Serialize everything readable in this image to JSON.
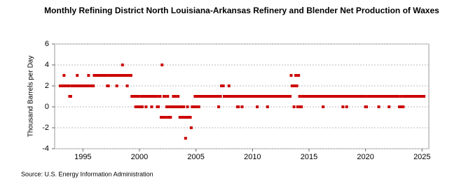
{
  "chart_data": {
    "type": "scatter",
    "title": "Monthly Refining District North Louisiana-Arkansas Refinery and Blender Net Production of Waxes",
    "y_label": "Thousand Barrels per Day",
    "source": "Source: U.S. Energy Information Administration",
    "color": "#cc0000",
    "xlim": [
      1992.5,
      2025.6
    ],
    "xticks": [
      1995,
      2000,
      2005,
      2010,
      2015,
      2020,
      2025
    ],
    "ylim": [
      -4,
      6
    ],
    "yticks": [
      -4,
      -2,
      0,
      2,
      4,
      6
    ],
    "grid": true,
    "x": [
      1993,
      1993.08,
      1993.17,
      1993.25,
      1993.33,
      1993.42,
      1993.5,
      1993.58,
      1993.67,
      1993.75,
      1993.83,
      1993.92,
      1994,
      1994.08,
      1994.17,
      1994.25,
      1994.33,
      1994.42,
      1994.5,
      1994.58,
      1994.67,
      1994.75,
      1994.83,
      1994.92,
      1995,
      1995.08,
      1995.17,
      1995.25,
      1995.33,
      1995.42,
      1995.5,
      1995.58,
      1995.67,
      1995.75,
      1995.83,
      1995.92,
      1996,
      1996.08,
      1996.17,
      1996.25,
      1996.33,
      1996.42,
      1996.5,
      1996.58,
      1996.67,
      1996.75,
      1996.83,
      1996.92,
      1997,
      1997.08,
      1997.17,
      1997.25,
      1997.33,
      1997.42,
      1997.5,
      1997.58,
      1997.67,
      1997.75,
      1997.83,
      1997.92,
      1998,
      1998.08,
      1998.17,
      1998.25,
      1998.33,
      1998.42,
      1998.5,
      1998.58,
      1998.67,
      1998.75,
      1998.83,
      1998.92,
      1999,
      1999.08,
      1999.17,
      1999.25,
      1999.33,
      1999.42,
      1999.5,
      1999.58,
      1999.67,
      1999.75,
      1999.83,
      1999.92,
      2000,
      2000.08,
      2000.17,
      2000.25,
      2000.33,
      2000.42,
      2000.5,
      2000.58,
      2000.67,
      2000.75,
      2000.83,
      2000.92,
      2001,
      2001.08,
      2001.17,
      2001.25,
      2001.33,
      2001.42,
      2001.5,
      2001.58,
      2001.67,
      2001.75,
      2001.83,
      2001.92,
      2002,
      2002.08,
      2002.17,
      2002.25,
      2002.33,
      2002.42,
      2002.5,
      2002.58,
      2002.67,
      2002.75,
      2002.83,
      2002.92,
      2003,
      2003.08,
      2003.17,
      2003.25,
      2003.33,
      2003.42,
      2003.5,
      2003.58,
      2003.67,
      2003.75,
      2003.83,
      2003.92,
      2004,
      2004.08,
      2004.17,
      2004.25,
      2004.33,
      2004.42,
      2004.5,
      2004.58,
      2004.67,
      2004.75,
      2004.83,
      2004.92,
      2005,
      2005.08,
      2005.17,
      2005.25,
      2005.33,
      2005.42,
      2005.5,
      2005.58,
      2005.67,
      2005.75,
      2005.83,
      2005.92,
      2006,
      2006.08,
      2006.17,
      2006.25,
      2006.33,
      2006.42,
      2006.5,
      2006.58,
      2006.67,
      2006.75,
      2006.83,
      2006.92,
      2007,
      2007.08,
      2007.17,
      2007.25,
      2007.33,
      2007.42,
      2007.5,
      2007.58,
      2007.67,
      2007.75,
      2007.83,
      2007.92,
      2008,
      2008.08,
      2008.17,
      2008.25,
      2008.33,
      2008.42,
      2008.5,
      2008.58,
      2008.67,
      2008.75,
      2008.83,
      2008.92,
      2009,
      2009.08,
      2009.17,
      2009.25,
      2009.33,
      2009.42,
      2009.5,
      2009.58,
      2009.67,
      2009.75,
      2009.83,
      2009.92,
      2010,
      2010.08,
      2010.17,
      2010.25,
      2010.33,
      2010.42,
      2010.5,
      2010.58,
      2010.67,
      2010.75,
      2010.83,
      2010.92,
      2011,
      2011.08,
      2011.17,
      2011.25,
      2011.33,
      2011.42,
      2011.5,
      2011.58,
      2011.67,
      2011.75,
      2011.83,
      2011.92,
      2012,
      2012.08,
      2012.17,
      2012.25,
      2012.33,
      2012.42,
      2012.5,
      2012.58,
      2012.67,
      2012.75,
      2012.83,
      2012.92,
      2013,
      2013.08,
      2013.17,
      2013.25,
      2013.33,
      2013.42,
      2013.5,
      2013.58,
      2013.67,
      2013.75,
      2013.83,
      2013.92,
      2014,
      2014.08,
      2014.17,
      2014.25,
      2014.33,
      2014.42,
      2014.5,
      2014.58,
      2014.67,
      2014.75,
      2014.83,
      2014.92,
      2015,
      2015.08,
      2015.17,
      2015.25,
      2015.33,
      2015.42,
      2015.5,
      2015.58,
      2015.67,
      2015.75,
      2015.83,
      2015.92,
      2016,
      2016.08,
      2016.17,
      2016.25,
      2016.33,
      2016.42,
      2016.5,
      2016.58,
      2016.67,
      2016.75,
      2016.83,
      2016.92,
      2017,
      2017.08,
      2017.17,
      2017.25,
      2017.33,
      2017.42,
      2017.5,
      2017.58,
      2017.67,
      2017.75,
      2017.83,
      2017.92,
      2018,
      2018.08,
      2018.17,
      2018.25,
      2018.33,
      2018.42,
      2018.5,
      2018.58,
      2018.67,
      2018.75,
      2018.83,
      2018.92,
      2019,
      2019.08,
      2019.17,
      2019.25,
      2019.33,
      2019.42,
      2019.5,
      2019.58,
      2019.67,
      2019.75,
      2019.83,
      2019.92,
      2020,
      2020.08,
      2020.17,
      2020.25,
      2020.33,
      2020.42,
      2020.5,
      2020.58,
      2020.67,
      2020.75,
      2020.83,
      2020.92,
      2021,
      2021.08,
      2021.17,
      2021.25,
      2021.33,
      2021.42,
      2021.5,
      2021.58,
      2021.67,
      2021.75,
      2021.83,
      2021.92,
      2022,
      2022.08,
      2022.17,
      2022.25,
      2022.33,
      2022.42,
      2022.5,
      2022.58,
      2022.67,
      2022.75,
      2022.83,
      2022.92,
      2023,
      2023.08,
      2023.17,
      2023.25,
      2023.33,
      2023.42,
      2023.5,
      2023.58,
      2023.67,
      2023.75,
      2023.83,
      2023.92,
      2024,
      2024.08,
      2024.17,
      2024.25,
      2024.33,
      2024.42,
      2024.5,
      2024.58,
      2024.67,
      2024.75,
      2024.83,
      2024.92,
      2025,
      2025.08,
      2025.17
    ],
    "values": [
      2,
      2,
      2,
      2,
      3,
      2,
      2,
      2,
      2,
      2,
      1,
      1,
      2,
      2,
      2,
      2,
      2,
      2,
      3,
      2,
      2,
      2,
      2,
      2,
      2,
      2,
      2,
      2,
      2,
      2,
      3,
      2,
      2,
      2,
      2,
      2,
      3,
      3,
      3,
      3,
      3,
      3,
      3,
      3,
      3,
      3,
      3,
      3,
      3,
      3,
      2,
      2,
      3,
      3,
      3,
      3,
      3,
      3,
      3,
      3,
      2,
      3,
      3,
      3,
      3,
      3,
      4,
      3,
      3,
      3,
      3,
      2,
      3,
      3,
      3,
      3,
      1,
      1,
      1,
      1,
      0,
      1,
      0,
      1,
      0,
      0,
      1,
      0,
      1,
      1,
      1,
      0,
      1,
      1,
      1,
      1,
      1,
      0,
      1,
      1,
      1,
      1,
      1,
      0,
      0,
      1,
      1,
      -1,
      4,
      -1,
      1,
      1,
      -1,
      0,
      1,
      -1,
      0,
      -1,
      0,
      0,
      1,
      0,
      1,
      0,
      0,
      1,
      0,
      -1,
      -1,
      0,
      -1,
      0,
      -1,
      -3,
      -1,
      0,
      -1,
      -1,
      -1,
      -2,
      0,
      0,
      0,
      1,
      0,
      1,
      1,
      0,
      1,
      1,
      1,
      1,
      1,
      1,
      1,
      1,
      1,
      1,
      1,
      1,
      1,
      1,
      1,
      1,
      1,
      1,
      1,
      1,
      0,
      1,
      1,
      2,
      2,
      2,
      1,
      1,
      1,
      1,
      1,
      2,
      1,
      1,
      1,
      1,
      1,
      1,
      1,
      1,
      0,
      0,
      1,
      1,
      1,
      0,
      1,
      1,
      1,
      1,
      1,
      1,
      1,
      1,
      1,
      1,
      1,
      1,
      1,
      1,
      1,
      0,
      1,
      1,
      1,
      1,
      1,
      1,
      1,
      1,
      1,
      1,
      0,
      1,
      1,
      1,
      1,
      1,
      1,
      1,
      1,
      1,
      1,
      1,
      1,
      1,
      1,
      1,
      1,
      1,
      1,
      1,
      1,
      1,
      1,
      1,
      1,
      3,
      2,
      2,
      0,
      2,
      3,
      2,
      0,
      3,
      1,
      0,
      0,
      1,
      1,
      1,
      1,
      1,
      1,
      1,
      1,
      1,
      1,
      1,
      1,
      1,
      1,
      1,
      1,
      1,
      1,
      1,
      1,
      1,
      1,
      0,
      1,
      1,
      1,
      1,
      1,
      1,
      1,
      1,
      1,
      1,
      1,
      1,
      1,
      1,
      1,
      1,
      1,
      1,
      1,
      1,
      0,
      1,
      1,
      1,
      0,
      1,
      1,
      1,
      1,
      1,
      1,
      1,
      1,
      1,
      1,
      1,
      1,
      1,
      1,
      1,
      1,
      1,
      1,
      1,
      0,
      0,
      1,
      1,
      1,
      1,
      1,
      1,
      1,
      1,
      1,
      1,
      1,
      1,
      0,
      1,
      1,
      1,
      1,
      1,
      1,
      1,
      1,
      1,
      1,
      0,
      1,
      1,
      1,
      1,
      1,
      1,
      1,
      1,
      1,
      1,
      0,
      0,
      1,
      0,
      0,
      1,
      1,
      1,
      1,
      1,
      1,
      1,
      1,
      1,
      1,
      1,
      1,
      1,
      1,
      1,
      1,
      1,
      1,
      1,
      1,
      1,
      1
    ]
  }
}
